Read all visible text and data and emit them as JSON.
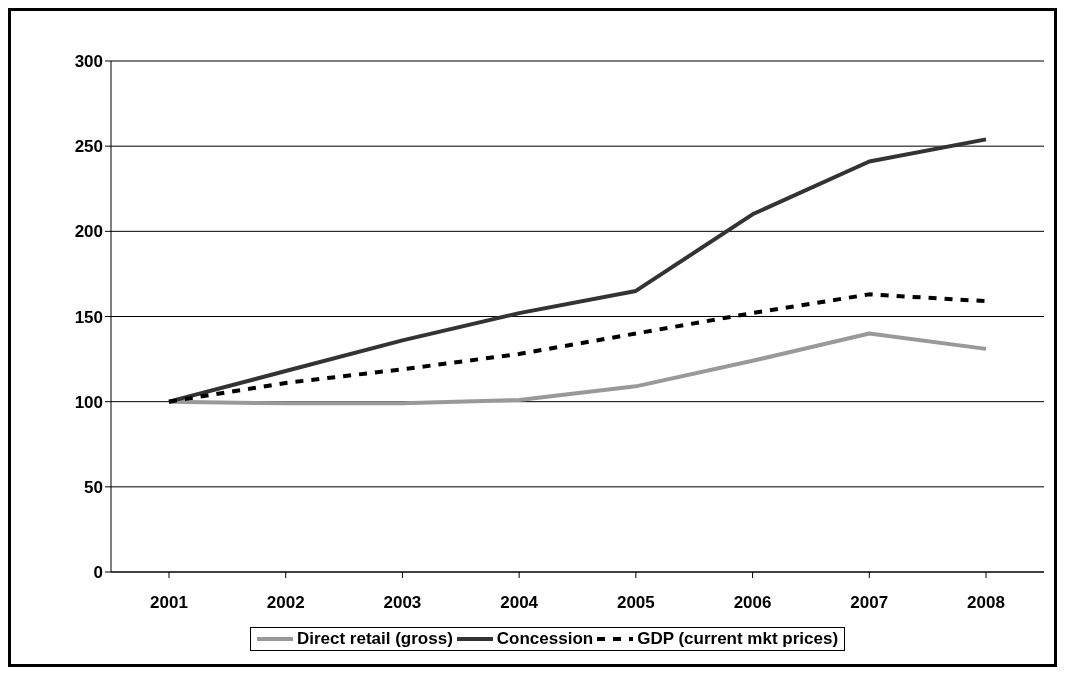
{
  "chart_data": {
    "type": "line",
    "categories": [
      "2001",
      "2002",
      "2003",
      "2004",
      "2005",
      "2006",
      "2007",
      "2008"
    ],
    "series": [
      {
        "name": "Direct retail (gross)",
        "color": "#999999",
        "line_style": "solid",
        "values": [
          100,
          99,
          99,
          101,
          109,
          124,
          140,
          131
        ]
      },
      {
        "name": "Concession",
        "color": "#333333",
        "line_style": "solid",
        "values": [
          100,
          118,
          136,
          152,
          165,
          210,
          241,
          254
        ]
      },
      {
        "name": "GDP (current mkt prices)",
        "color": "#000000",
        "line_style": "dashed",
        "values": [
          100,
          111,
          119,
          128,
          140,
          152,
          163,
          159
        ]
      }
    ],
    "ylim": [
      0,
      300
    ],
    "yticks": [
      0,
      50,
      100,
      150,
      200,
      250,
      300
    ],
    "grid": "y",
    "legend": "bottom",
    "marker": "none"
  }
}
